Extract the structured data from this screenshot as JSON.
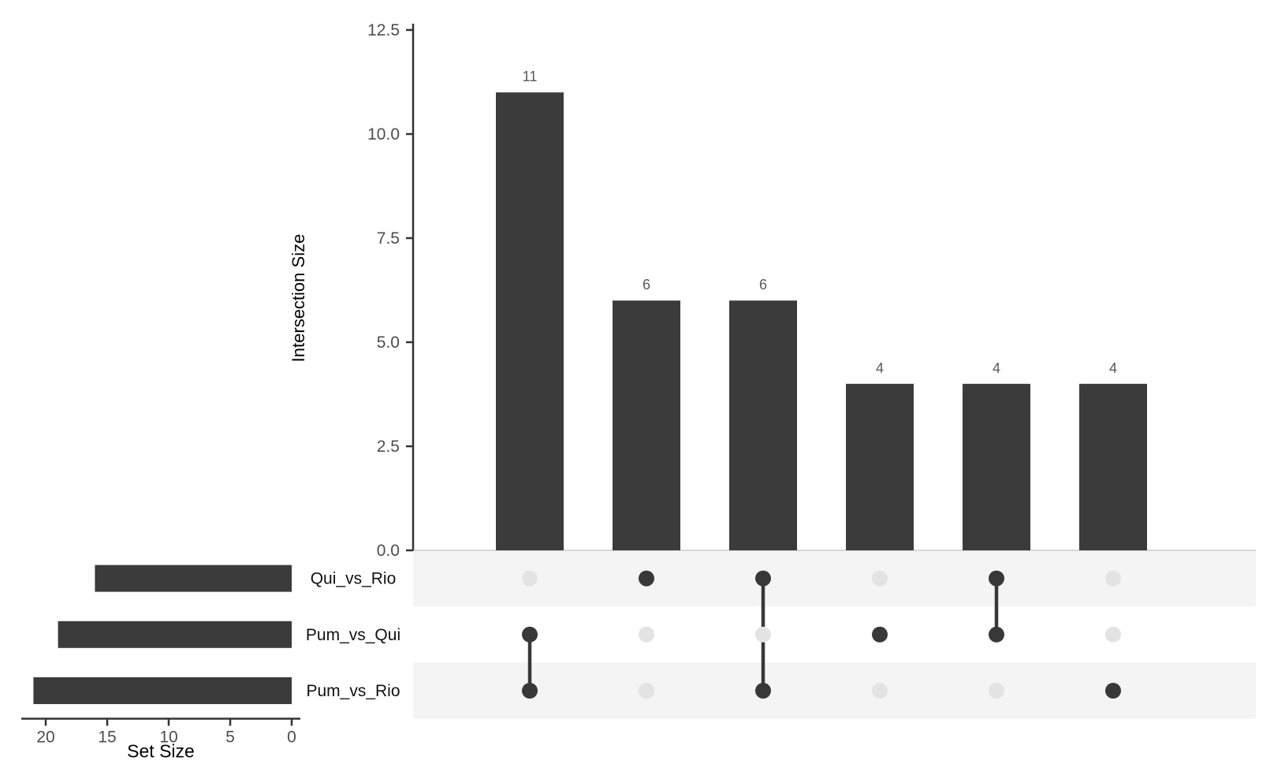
{
  "chart_data": {
    "type": "bar",
    "subtype": "upset-plot",
    "intersection_axis": {
      "label": "Intersection Size",
      "tick_labels": [
        "0.0",
        "2.5",
        "5.0",
        "7.5",
        "10.0",
        "12.5"
      ],
      "tick_values": [
        0,
        2.5,
        5,
        7.5,
        10,
        12.5
      ],
      "range": [
        0,
        12.65
      ]
    },
    "set_axis": {
      "label": "Set Size",
      "tick_labels": [
        "20",
        "15",
        "10",
        "5",
        "0"
      ],
      "tick_values": [
        20,
        15,
        10,
        5,
        0
      ],
      "range": [
        22,
        0
      ],
      "direction": "reversed"
    },
    "sets": [
      {
        "name": "Qui_vs_Rio",
        "size": 16
      },
      {
        "name": "Pum_vs_Qui",
        "size": 19
      },
      {
        "name": "Pum_vs_Rio",
        "size": 21
      }
    ],
    "intersections": [
      {
        "size": 11,
        "label": "11",
        "members": [
          "Pum_vs_Qui",
          "Pum_vs_Rio"
        ],
        "member_rows": [
          1,
          2
        ]
      },
      {
        "size": 6,
        "label": "6",
        "members": [
          "Qui_vs_Rio"
        ],
        "member_rows": [
          0
        ]
      },
      {
        "size": 6,
        "label": "6",
        "members": [
          "Qui_vs_Rio",
          "Pum_vs_Rio"
        ],
        "member_rows": [
          0,
          2
        ]
      },
      {
        "size": 4,
        "label": "4",
        "members": [
          "Pum_vs_Qui"
        ],
        "member_rows": [
          1
        ]
      },
      {
        "size": 4,
        "label": "4",
        "members": [
          "Qui_vs_Rio",
          "Pum_vs_Qui"
        ],
        "member_rows": [
          0,
          1
        ]
      },
      {
        "size": 4,
        "label": "4",
        "members": [
          "Pum_vs_Rio"
        ],
        "member_rows": [
          2
        ]
      }
    ],
    "legend": "none",
    "grid": "off",
    "colors": {
      "bar": "#3b3b3b",
      "dot_active": "#383838",
      "dot_inactive": "#e3e3e3",
      "stripe": "#f4f4f4",
      "axis_line": "#333333",
      "tick_label": "#4d4d4d",
      "value_label": "#595959",
      "row_label": "#111111",
      "axis_title": "#000000",
      "panel_divider": "#cbcbcb",
      "background": "#ffffff"
    }
  }
}
